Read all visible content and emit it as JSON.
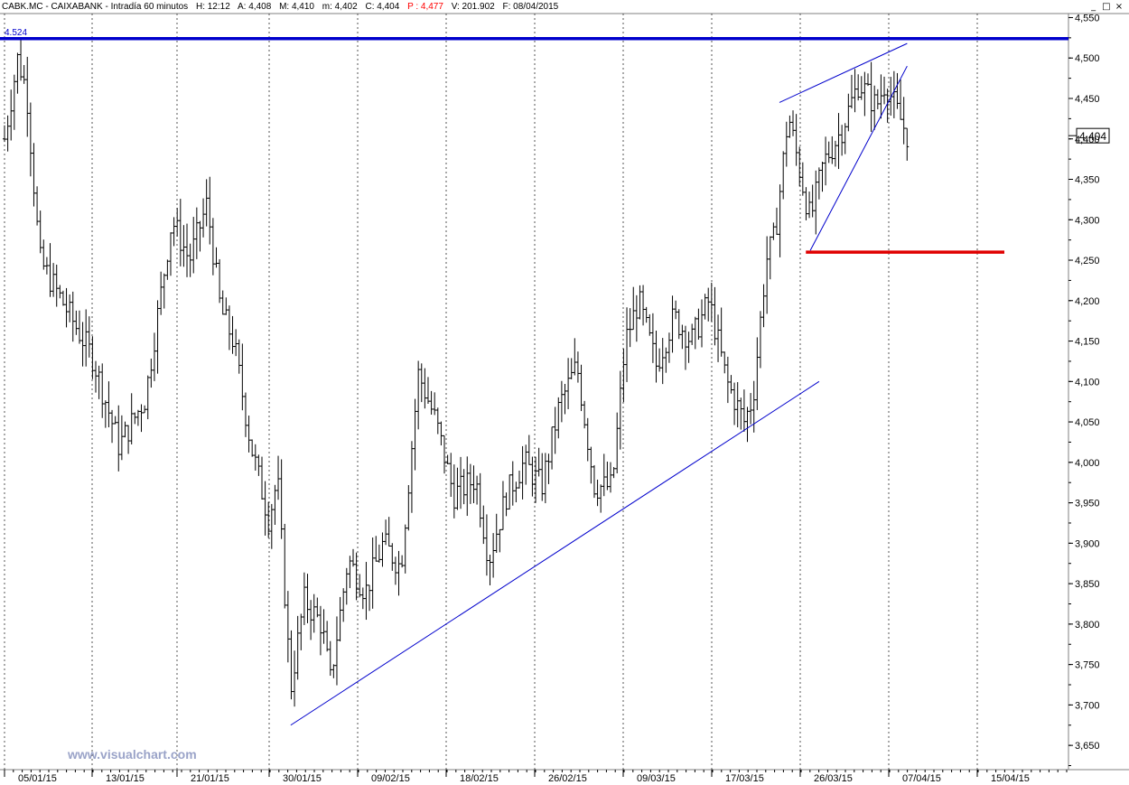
{
  "header": {
    "symbol": "CABK.MC - CAIXABANK - Intradía 60 minutos",
    "h": "H: 12:12",
    "a": "A: 4,408",
    "m_max": "M: 4,410",
    "m_min": "m: 4,402",
    "c": "C: 4,404",
    "p": "P : 4,477",
    "v": "V: 201.902",
    "f": "F: 08/04/2015"
  },
  "window_buttons": [
    "_",
    "□",
    "×"
  ],
  "watermark": "www.visualchart.com",
  "colors": {
    "candles": "#000000",
    "resistance": "#0000cc",
    "support": "#e00000",
    "trendline": "#0000cc",
    "watermark": "#9aa3c8",
    "last_price_box": "#000000"
  },
  "chart_data": {
    "type": "bar",
    "title": "CABK.MC - CAIXABANK - Intradía 60 minutos",
    "x_tick_labels": [
      "05/01/15",
      "13/01/15",
      "21/01/15",
      "30/01/15",
      "09/02/15",
      "18/02/15",
      "26/02/15",
      "09/03/15",
      "17/03/15",
      "26/03/15",
      "07/04/15",
      "15/04/15"
    ],
    "y_tick_labels": [
      "4,550",
      "4,500",
      "4,450",
      "4,400",
      "4,350",
      "4,300",
      "4,250",
      "4,200",
      "4,150",
      "4,100",
      "4,050",
      "4,000",
      "3,950",
      "3,900",
      "3,850",
      "3,800",
      "3,750",
      "3,700",
      "3,650"
    ],
    "ylim": [
      3.62,
      4.555
    ],
    "grid": {
      "vertical": true,
      "horizontal": false
    },
    "last_price_label": "4,404",
    "last_price": 4.404,
    "resistance_level_label": "4.524",
    "resistance_level": 4.524,
    "support_level": 4.26,
    "price_path": [
      {
        "t": 0,
        "v": 4.4
      },
      {
        "t": 1.5,
        "v": 4.5
      },
      {
        "t": 2.5,
        "v": 4.46
      },
      {
        "t": 4,
        "v": 4.25
      },
      {
        "t": 7,
        "v": 4.19
      },
      {
        "t": 10,
        "v": 4.13
      },
      {
        "t": 13,
        "v": 4.02
      },
      {
        "t": 16,
        "v": 4.08
      },
      {
        "t": 19,
        "v": 4.3
      },
      {
        "t": 21,
        "v": 4.25
      },
      {
        "t": 23,
        "v": 4.32
      },
      {
        "t": 24.5,
        "v": 4.19
      },
      {
        "t": 26,
        "v": 4.15
      },
      {
        "t": 28,
        "v": 4.02
      },
      {
        "t": 30,
        "v": 3.93
      },
      {
        "t": 31,
        "v": 3.98
      },
      {
        "t": 32.5,
        "v": 3.72
      },
      {
        "t": 34,
        "v": 3.83
      },
      {
        "t": 36,
        "v": 3.8
      },
      {
        "t": 37,
        "v": 3.73
      },
      {
        "t": 39,
        "v": 3.88
      },
      {
        "t": 41,
        "v": 3.84
      },
      {
        "t": 43,
        "v": 3.9
      },
      {
        "t": 45,
        "v": 3.87
      },
      {
        "t": 47,
        "v": 4.11
      },
      {
        "t": 49,
        "v": 4.05
      },
      {
        "t": 51,
        "v": 3.96
      },
      {
        "t": 53.5,
        "v": 3.98
      },
      {
        "t": 55,
        "v": 3.88
      },
      {
        "t": 57,
        "v": 3.96
      },
      {
        "t": 59,
        "v": 4.0
      },
      {
        "t": 61,
        "v": 3.97
      },
      {
        "t": 63,
        "v": 4.07
      },
      {
        "t": 65,
        "v": 4.12
      },
      {
        "t": 67,
        "v": 3.97
      },
      {
        "t": 69,
        "v": 3.97
      },
      {
        "t": 70.5,
        "v": 4.15
      },
      {
        "t": 72,
        "v": 4.2
      },
      {
        "t": 74,
        "v": 4.12
      },
      {
        "t": 76,
        "v": 4.18
      },
      {
        "t": 78,
        "v": 4.15
      },
      {
        "t": 80,
        "v": 4.2
      },
      {
        "t": 82,
        "v": 4.1
      },
      {
        "t": 84,
        "v": 4.05
      },
      {
        "t": 85,
        "v": 4.08
      },
      {
        "t": 86.5,
        "v": 4.25
      },
      {
        "t": 87.5,
        "v": 4.28
      },
      {
        "t": 89,
        "v": 4.43
      },
      {
        "t": 90.5,
        "v": 4.35
      },
      {
        "t": 91.5,
        "v": 4.3
      },
      {
        "t": 93,
        "v": 4.37
      },
      {
        "t": 95,
        "v": 4.41
      },
      {
        "t": 97,
        "v": 4.47
      },
      {
        "t": 99,
        "v": 4.44
      },
      {
        "t": 100,
        "v": 4.47
      },
      {
        "t": 101.5,
        "v": 4.43
      },
      {
        "t": 102.5,
        "v": 4.405
      }
    ],
    "trendlines": [
      {
        "name": "support-trendline",
        "from": {
          "t": 32.5,
          "v": 3.675
        },
        "to": {
          "t": 92.5,
          "v": 4.1
        }
      },
      {
        "name": "wedge-upper",
        "from": {
          "t": 88,
          "v": 4.445
        },
        "to": {
          "t": 102.5,
          "v": 4.518
        }
      },
      {
        "name": "wedge-lower",
        "from": {
          "t": 91.5,
          "v": 4.262
        },
        "to": {
          "t": 102.5,
          "v": 4.49
        }
      }
    ]
  }
}
